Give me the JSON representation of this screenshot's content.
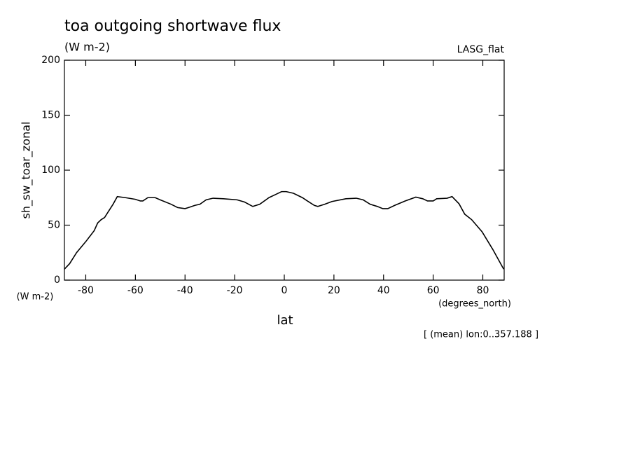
{
  "chart_data": {
    "type": "line",
    "title": "toa outgoing shortwave flux",
    "subtitle": "(W m-2)",
    "source_label": "LASG_flat",
    "y_label": "sh_sw_toar_zonal",
    "y_units": "(W m-2)",
    "x_label": "lat",
    "x_units": "(degrees_north)",
    "note": "[ (mean) lon:0..357.188 ]",
    "color": "#000000",
    "x": [
      -88.6,
      -86.5,
      -83.7,
      -80,
      -76.6,
      -75.2,
      -73.8,
      -72.4,
      -71,
      -69,
      -67.3,
      -64,
      -60,
      -58,
      -57,
      -55,
      -52,
      -50,
      -45.6,
      -43,
      -40,
      -38.6,
      -36,
      -34,
      -31.5,
      -28.7,
      -24.5,
      -19,
      -16,
      -12.7,
      -9.9,
      -6.2,
      -3.4,
      -1.1,
      0.8,
      3.7,
      7.3,
      9.3,
      12.1,
      13.5,
      16.3,
      19.2,
      24.8,
      29,
      31.8,
      34.6,
      37.5,
      39.7,
      41.7,
      44.5,
      48.7,
      53,
      55.8,
      57.7,
      60,
      61.4,
      65.6,
      67.6,
      70.4,
      72.7,
      75.5,
      79.7,
      84,
      88.4
    ],
    "values": [
      10,
      15,
      25,
      35,
      45,
      52,
      55,
      57,
      62,
      69,
      76,
      75,
      73.5,
      72,
      72,
      75,
      75,
      73,
      69,
      66,
      65,
      66,
      68,
      69,
      73,
      74.5,
      74,
      73,
      71,
      67,
      69,
      75,
      78,
      80.5,
      80.5,
      79,
      75,
      72,
      68,
      67,
      69,
      71.5,
      74,
      74.5,
      73,
      69,
      67,
      65,
      65,
      68,
      72,
      75.5,
      74,
      72,
      72,
      74,
      74.5,
      76,
      69.5,
      60,
      55,
      44,
      28,
      10
    ],
    "xlim": [
      -88.6,
      88.6
    ],
    "ylim": [
      0,
      200
    ],
    "xticks": [
      -80,
      -60,
      -40,
      -20,
      0,
      20,
      40,
      60,
      80
    ],
    "yticks": [
      0,
      50,
      100,
      150,
      200
    ]
  }
}
